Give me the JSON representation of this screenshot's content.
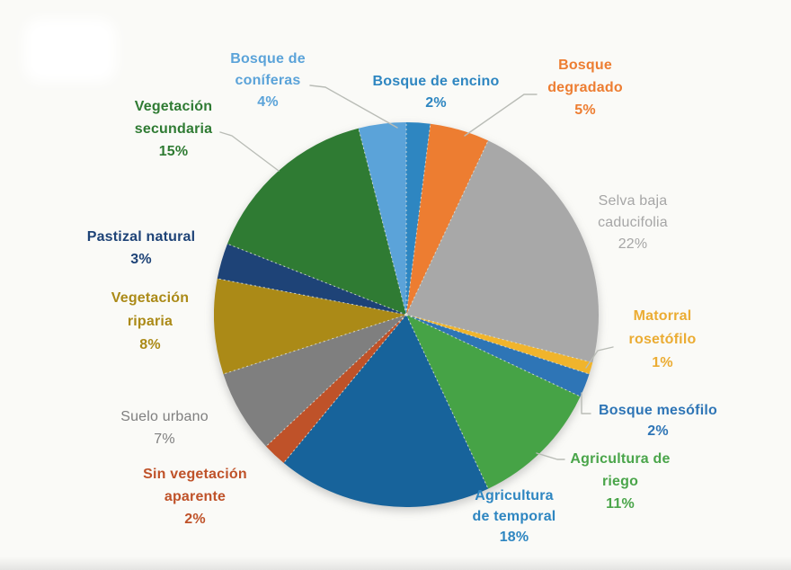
{
  "canvas": {
    "background_color": "#FAFAF7",
    "title": ""
  },
  "chart_data": {
    "type": "pie",
    "title": "",
    "unit": "%",
    "total": 100,
    "start_angle_deg": -90,
    "direction": "clockwise",
    "legend": "none",
    "leader_line_color": "#B9BCB6",
    "slices": [
      {
        "name": "Bosque de encino",
        "value": 2,
        "color": "#2E86C1",
        "label_lines": [
          "Bosque de encino"
        ],
        "pct_label": "2%",
        "bold": true,
        "label_color": "#2E86C1"
      },
      {
        "name": "Bosque degradado",
        "value": 5,
        "color": "#ED7D31",
        "label_lines": [
          "Bosque",
          "degradado"
        ],
        "pct_label": "5%",
        "bold": true,
        "label_color": "#ED7D31"
      },
      {
        "name": "Selva baja caducifolia",
        "value": 22,
        "color": "#A8A8A8",
        "label_lines": [
          "Selva baja",
          "caducifolia"
        ],
        "pct_label": "22%",
        "bold": false,
        "label_color": "#A6A6A6"
      },
      {
        "name": "Matorral rosetófilo",
        "value": 1,
        "color": "#F0B42C",
        "label_lines": [
          "Matorral",
          "rosetófilo"
        ],
        "pct_label": "1%",
        "bold": true,
        "label_color": "#EBAC33"
      },
      {
        "name": "Bosque mesófilo",
        "value": 2,
        "color": "#2E75B6",
        "label_lines": [
          "Bosque mesófilo"
        ],
        "pct_label": "2%",
        "bold": true,
        "label_color": "#2E75B6"
      },
      {
        "name": "Agricultura de riego",
        "value": 11,
        "color": "#46A346",
        "label_lines": [
          "Agricultura de",
          "riego"
        ],
        "pct_label": "11%",
        "bold": true,
        "label_color": "#4AA54A"
      },
      {
        "name": "Agricultura de temporal",
        "value": 18,
        "color": "#17639B",
        "label_lines": [
          "Agricultura",
          "de temporal"
        ],
        "pct_label": "18%",
        "bold": true,
        "label_color": "#2E86C1"
      },
      {
        "name": "Sin vegetación aparente",
        "value": 2,
        "color": "#BF5229",
        "label_lines": [
          "Sin vegetación",
          "aparente"
        ],
        "pct_label": "2%",
        "bold": true,
        "label_color": "#BF5229"
      },
      {
        "name": "Suelo urbano",
        "value": 7,
        "color": "#7F7F7F",
        "label_lines": [
          "Suelo urbano"
        ],
        "pct_label": "7%",
        "bold": false,
        "label_color": "#7F7F7F"
      },
      {
        "name": "Vegetación riparia",
        "value": 8,
        "color": "#AB8A17",
        "label_lines": [
          "Vegetación",
          "riparia"
        ],
        "pct_label": "8%",
        "bold": true,
        "label_color": "#AB8A17"
      },
      {
        "name": "Pastizal natural",
        "value": 3,
        "color": "#1E4377",
        "label_lines": [
          "Pastizal natural"
        ],
        "pct_label": "3%",
        "bold": true,
        "label_color": "#1E4377"
      },
      {
        "name": "Vegetación secundaria",
        "value": 15,
        "color": "#2F7B33",
        "label_lines": [
          "Vegetación",
          "secundaria"
        ],
        "pct_label": "15%",
        "bold": true,
        "label_color": "#2F7B33"
      },
      {
        "name": "Bosque de coníferas",
        "value": 4,
        "color": "#5BA3D9",
        "label_lines": [
          "Bosque de",
          "coníferas"
        ],
        "pct_label": "4%",
        "bold": true,
        "label_color": "#5BA3D9"
      }
    ]
  }
}
